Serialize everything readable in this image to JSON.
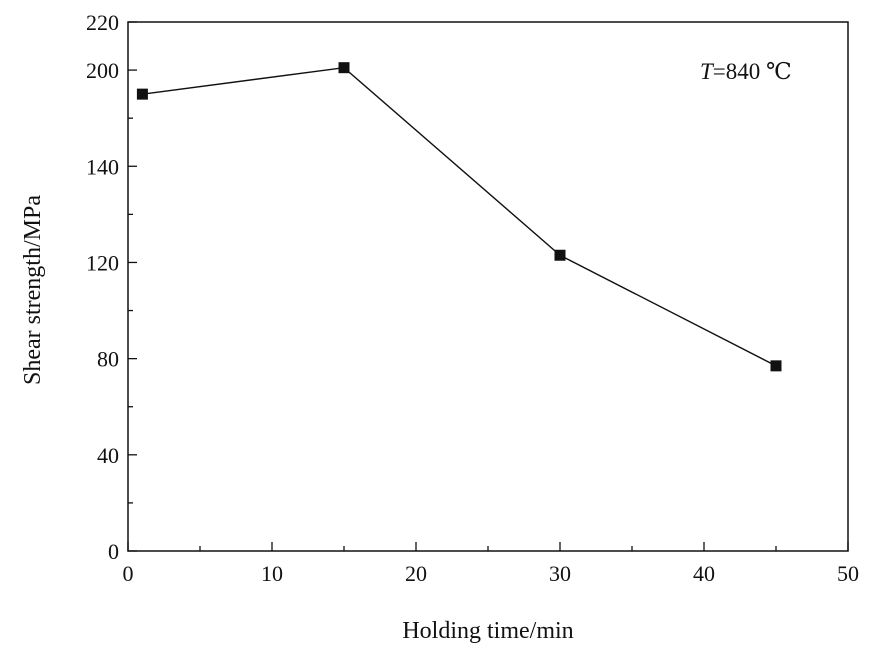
{
  "chart_data": {
    "type": "line",
    "xlabel": "Holding time/min",
    "ylabel": "Shear strength/MPa",
    "xlim": [
      0,
      50
    ],
    "ylim": [
      0,
      220
    ],
    "xticks": [
      0,
      10,
      20,
      30,
      40,
      50
    ],
    "yticks": [
      0,
      40,
      80,
      120,
      140,
      200,
      220
    ],
    "x_tick_labels": [
      "0",
      "10",
      "20",
      "30",
      "40",
      "50"
    ],
    "y_tick_labels": [
      "0",
      "40",
      "80",
      "120",
      "140",
      "200",
      "220"
    ],
    "grid": false,
    "legend": "none",
    "marker": "square",
    "line_color": "#111111",
    "series": [
      {
        "x": [
          1,
          15,
          30,
          45
        ],
        "values": [
          190,
          201,
          123,
          77
        ]
      }
    ],
    "annotation": {
      "variable": "T",
      "text": "=840 ℃"
    }
  }
}
